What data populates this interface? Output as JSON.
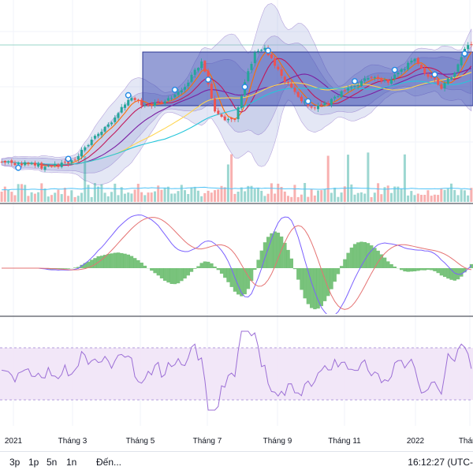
{
  "chart_data": {
    "type": "candlestick",
    "x_axis": {
      "ticks": [
        "2021",
        "Tháng 3",
        "Tháng 5",
        "Tháng 7",
        "Tháng 9",
        "Tháng 11",
        "2022",
        "Tháng"
      ]
    },
    "panes": [
      "price-volume",
      "macd",
      "rsi"
    ],
    "rsi_band": [
      30,
      70
    ],
    "colors": {
      "up": "#26a69a",
      "down": "#ef5350",
      "macd_hist_up": "#4caf50",
      "macd_line": "#7b61ff",
      "signal_line": "#e57373",
      "rsi_line": "#9c6fd6",
      "rsi_band_fill": "#f1e4f7",
      "channel_box": "#3f51b5",
      "bollinger_fill": "#9fa8da"
    }
  },
  "toolbar": {
    "ranges": [
      "3p",
      "1p",
      "5n",
      "1n"
    ],
    "goto_label": "Đến...",
    "clock": "16:12:27 (UTC-"
  }
}
